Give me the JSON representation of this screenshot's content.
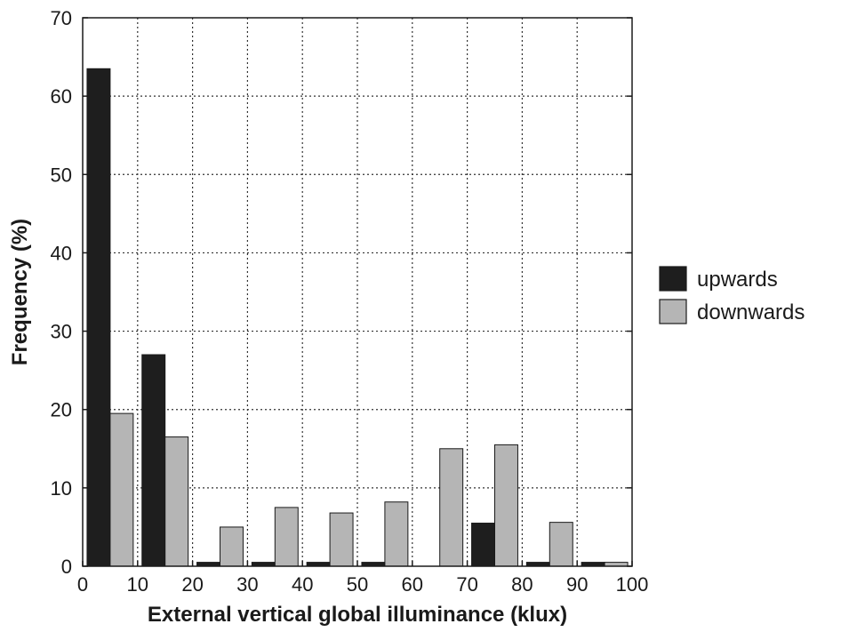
{
  "chart_data": {
    "type": "bar",
    "xlabel": "External vertical global illuminance (klux)",
    "ylabel": "Frequency (%)",
    "xlim": [
      0,
      100
    ],
    "ylim": [
      0,
      70
    ],
    "x_ticks": [
      "0",
      "10",
      "20",
      "30",
      "40",
      "50",
      "60",
      "70",
      "80",
      "90",
      "100"
    ],
    "y_ticks": [
      "0",
      "10",
      "20",
      "30",
      "40",
      "50",
      "60",
      "70"
    ],
    "bins": [
      "0-10",
      "10-20",
      "20-30",
      "30-40",
      "40-50",
      "50-60",
      "60-70",
      "70-80",
      "80-90",
      "90-100"
    ],
    "series": [
      {
        "name": "upwards",
        "color": "#1e1e1e",
        "values": [
          63.5,
          27.0,
          0.5,
          0.5,
          0.5,
          0.5,
          0,
          5.5,
          0.5,
          0.5
        ]
      },
      {
        "name": "downwards",
        "color": "#b5b5b5",
        "values": [
          19.5,
          16.5,
          5.0,
          7.5,
          6.8,
          8.2,
          15.0,
          15.5,
          5.6,
          0.5
        ]
      }
    ],
    "grid": true,
    "legend_position": "right"
  }
}
